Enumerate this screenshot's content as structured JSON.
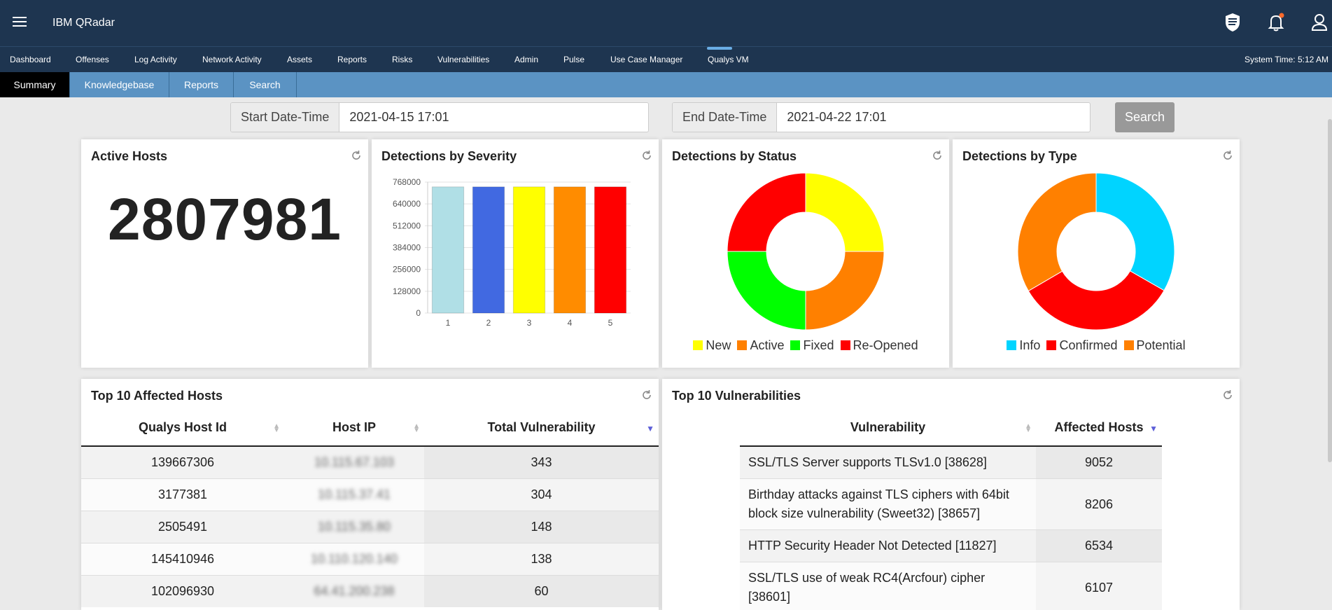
{
  "app": {
    "title": "IBM QRadar"
  },
  "nav": {
    "items": [
      "Dashboard",
      "Offenses",
      "Log Activity",
      "Network Activity",
      "Assets",
      "Reports",
      "Risks",
      "Vulnerabilities",
      "Admin",
      "Pulse",
      "Use Case Manager",
      "Qualys VM"
    ],
    "active": "Qualys VM",
    "system_time": "System Time: 5:12 AM"
  },
  "subtabs": {
    "items": [
      "Summary",
      "Knowledgebase",
      "Reports",
      "Search"
    ],
    "active": "Summary"
  },
  "filter": {
    "start_label": "Start Date-Time",
    "start_value": "2021-04-15 17:01",
    "end_label": "End Date-Time",
    "end_value": "2021-04-22 17:01",
    "search_label": "Search"
  },
  "cards": {
    "active_hosts": {
      "title": "Active Hosts",
      "value": "2807981"
    },
    "severity": {
      "title": "Detections by Severity"
    },
    "status": {
      "title": "Detections by Status",
      "legend": [
        "New",
        "Active",
        "Fixed",
        "Re-Opened"
      ]
    },
    "type": {
      "title": "Detections by Type",
      "legend": [
        "Info",
        "Confirmed",
        "Potential"
      ]
    }
  },
  "chart_data": [
    {
      "type": "bar",
      "categories": [
        "1",
        "2",
        "3",
        "4",
        "5"
      ],
      "values": [
        740000,
        740000,
        740000,
        740000,
        740000
      ],
      "colors": [
        "#b0dfe6",
        "#4169e1",
        "#ffff00",
        "#ff8c00",
        "#ff0000"
      ],
      "yticks": [
        0,
        128000,
        256000,
        384000,
        512000,
        640000,
        768000
      ],
      "ylim": [
        0,
        768000
      ],
      "grid": true
    },
    {
      "type": "pie",
      "donut": true,
      "labels": [
        "New",
        "Active",
        "Fixed",
        "Re-Opened"
      ],
      "values": [
        25,
        25,
        25,
        25
      ],
      "colors": [
        "#ffff00",
        "#ff8000",
        "#00ff00",
        "#ff0000"
      ]
    },
    {
      "type": "pie",
      "donut": true,
      "labels": [
        "Info",
        "Confirmed",
        "Potential"
      ],
      "values": [
        33.3,
        33.3,
        33.4
      ],
      "colors": [
        "#00d4ff",
        "#ff0000",
        "#ff8000"
      ]
    }
  ],
  "hosts_table": {
    "title": "Top 10 Affected Hosts",
    "columns": [
      "Qualys Host Id",
      "Host IP",
      "Total Vulnerability"
    ],
    "rows": [
      [
        "139667306",
        "10.115.67.103",
        "343"
      ],
      [
        "3177381",
        "10.115.37.41",
        "304"
      ],
      [
        "2505491",
        "10.115.35.80",
        "148"
      ],
      [
        "145410946",
        "10.110.120.140",
        "138"
      ],
      [
        "102096930",
        "64.41.200.238",
        "60"
      ]
    ]
  },
  "vulns_table": {
    "title": "Top 10 Vulnerabilities",
    "columns": [
      "Vulnerability",
      "Affected Hosts"
    ],
    "rows": [
      [
        "SSL/TLS Server supports TLSv1.0 [38628]",
        "9052"
      ],
      [
        "Birthday attacks against TLS ciphers with 64bit block size vulnerability (Sweet32) [38657]",
        "8206"
      ],
      [
        "HTTP Security Header Not Detected [11827]",
        "6534"
      ],
      [
        "SSL/TLS use of weak RC4(Arcfour) cipher [38601]",
        "6107"
      ]
    ]
  }
}
